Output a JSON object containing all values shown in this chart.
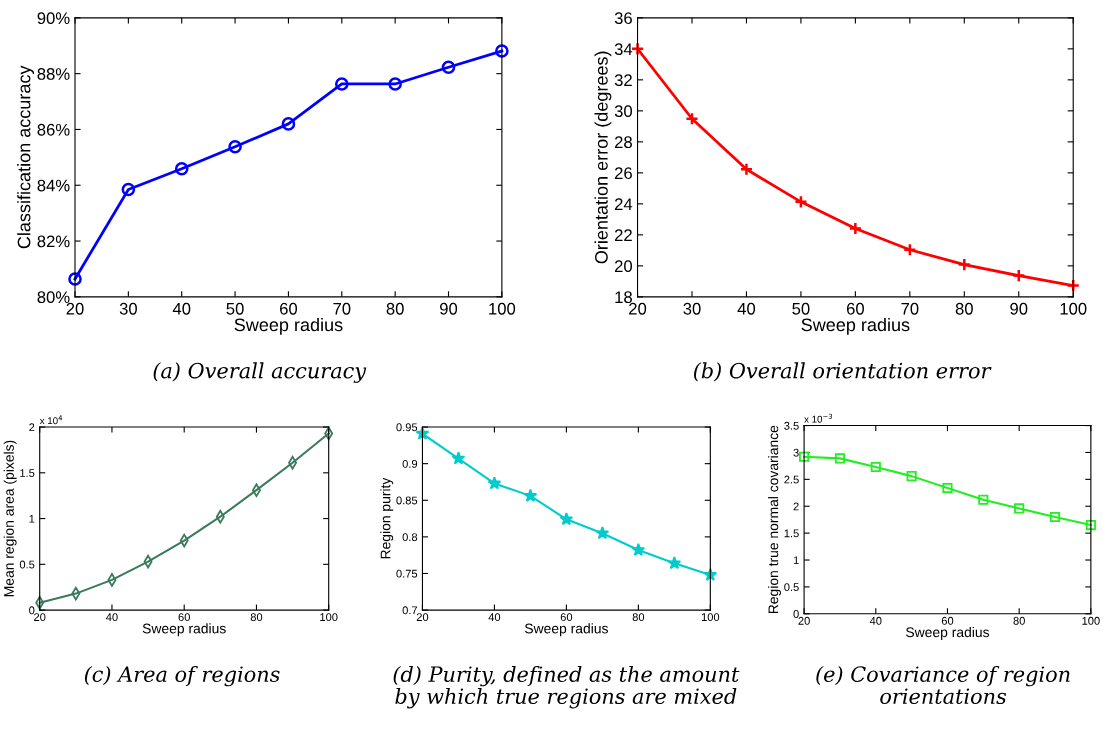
{
  "chart_data": [
    {
      "type": "line",
      "title": "(a) Overall accuracy",
      "xlabel": "Sweep radius",
      "ylabel": "Classification accuracy",
      "x": [
        20,
        30,
        40,
        50,
        60,
        70,
        80,
        90,
        100
      ],
      "series": [
        {
          "color": "#0000ff",
          "values": [
            80.64,
            83.85,
            84.59,
            85.38,
            86.2,
            87.63,
            87.63,
            88.23,
            88.81
          ]
        }
      ],
      "xlim": [
        20,
        100
      ],
      "xticks": [
        20,
        30,
        40,
        50,
        60,
        70,
        80,
        90,
        100
      ],
      "ylim": [
        80,
        90
      ],
      "yticks": [
        {
          "value": 80,
          "label": "80%"
        },
        {
          "value": 82,
          "label": "82%"
        },
        {
          "value": 84,
          "label": "84%"
        },
        {
          "value": 86,
          "label": "86%"
        },
        {
          "value": 88,
          "label": "88%"
        },
        {
          "value": 90,
          "label": "90%"
        }
      ],
      "marker": "circle"
    },
    {
      "type": "line",
      "title": "(b) Overall orientation error",
      "xlabel": "Sweep radius",
      "ylabel": "Orientation error (degrees)",
      "x": [
        20,
        30,
        40,
        50,
        60,
        70,
        80,
        90,
        100
      ],
      "series": [
        {
          "color": "#ff0000",
          "values": [
            34.0,
            29.49,
            26.23,
            24.13,
            22.41,
            21.04,
            20.08,
            19.37,
            18.73
          ]
        }
      ],
      "xlim": [
        20,
        100
      ],
      "xticks": [
        20,
        30,
        40,
        50,
        60,
        70,
        80,
        90,
        100
      ],
      "ylim": [
        18,
        36
      ],
      "yticks": [
        18,
        20,
        22,
        24,
        26,
        28,
        30,
        32,
        34,
        36
      ],
      "marker": "cross"
    },
    {
      "type": "line",
      "title": "(c) Area of regions",
      "xlabel": "Sweep radius",
      "ylabel": "Mean region area (pixels)",
      "annotations": [
        "x 10$^{4}$"
      ],
      "x": [
        20,
        30,
        40,
        50,
        60,
        70,
        80,
        90,
        100
      ],
      "series": [
        {
          "color": "#3a7a5c",
          "values": [
            0.08,
            0.18,
            0.33,
            0.53,
            0.76,
            1.02,
            1.31,
            1.61,
            1.93
          ]
        }
      ],
      "xlim": [
        20,
        100
      ],
      "xticks": [
        20,
        40,
        60,
        80,
        100
      ],
      "ylim": [
        0,
        2
      ],
      "yticks": [
        0,
        0.5,
        1,
        1.5,
        2
      ],
      "marker": "diamond"
    },
    {
      "type": "line",
      "title": "(d) Purity, defined as the amount by which true regions are mixed",
      "xlabel": "Sweep radius",
      "ylabel": "Region purity",
      "x": [
        20,
        30,
        40,
        50,
        60,
        70,
        80,
        90,
        100
      ],
      "series": [
        {
          "color": "#00cccc",
          "values": [
            0.941,
            0.907,
            0.873,
            0.856,
            0.824,
            0.805,
            0.782,
            0.764,
            0.748
          ]
        }
      ],
      "xlim": [
        20,
        100
      ],
      "xticks": [
        20,
        40,
        60,
        80,
        100
      ],
      "ylim": [
        0.7,
        0.95
      ],
      "yticks": [
        0.7,
        0.75,
        0.8,
        0.85,
        0.9,
        0.95
      ],
      "marker": "star"
    },
    {
      "type": "line",
      "title": "(e) Covariance of region orientations",
      "xlabel": "Sweep radius",
      "ylabel": "Region true normal covariance",
      "annotations": [
        "x 10$^{−3}$"
      ],
      "x": [
        20,
        30,
        40,
        50,
        60,
        70,
        80,
        90,
        100
      ],
      "series": [
        {
          "color": "#22ee22",
          "values": [
            2.92,
            2.89,
            2.73,
            2.56,
            2.34,
            2.12,
            1.96,
            1.8,
            1.65
          ]
        }
      ],
      "xlim": [
        20,
        100
      ],
      "xticks": [
        20,
        40,
        60,
        80,
        100
      ],
      "ylim": [
        0,
        3.5
      ],
      "yticks": [
        0,
        0.5,
        1,
        1.5,
        2,
        2.5,
        3,
        3.5
      ],
      "marker": "square"
    }
  ]
}
